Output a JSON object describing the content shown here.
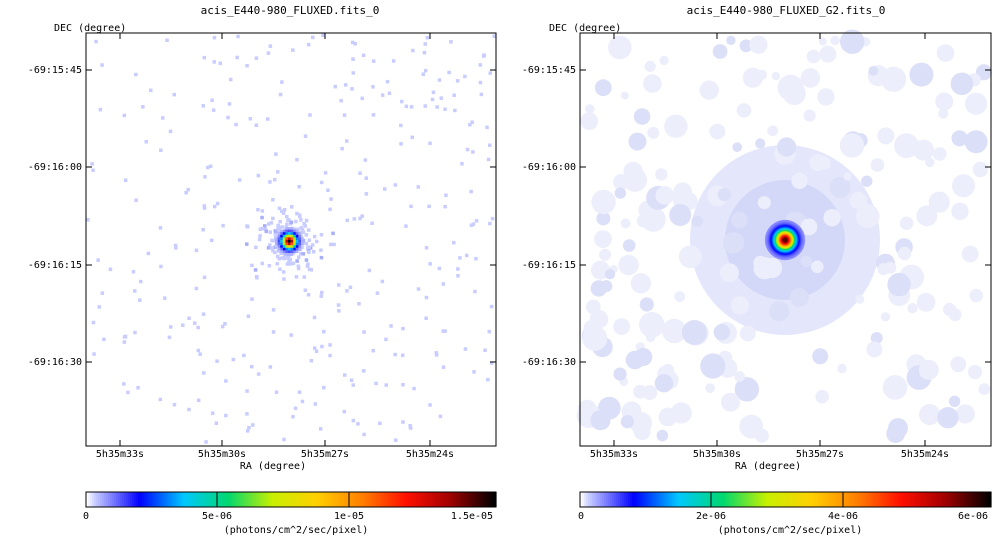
{
  "colors": {
    "colormap": [
      "#ffffff",
      "#c8ccff",
      "#0000ff",
      "#00c8ff",
      "#00d870",
      "#c8f000",
      "#ffd000",
      "#ff8000",
      "#ff1000",
      "#a00000",
      "#000000"
    ],
    "frame": "#000000",
    "background": "#ffffff"
  },
  "chart_data": [
    {
      "type": "heatmap",
      "title": "acis_E440-980_FLUXED.fits_0",
      "xlabel": "RA (degree)",
      "ylabel": "DEC (degree)",
      "x_ticks": [
        "5h35m33s",
        "5h35m30s",
        "5h35m27s",
        "5h35m24s"
      ],
      "y_ticks": [
        "-69:15:45",
        "-69:16:00",
        "-69:16:15",
        "-69:16:30"
      ],
      "source": {
        "ra": "5h35m28s",
        "dec": "-69:16:12",
        "peak": 1.5e-05
      },
      "style": "sparse",
      "colorbar": {
        "min": 0,
        "max": 1.5e-05,
        "tick_labels": [
          "0",
          "5e-06",
          "1e-05",
          "1.5e-05"
        ],
        "tick_values": [
          0,
          5e-06,
          1e-05,
          1.5e-05
        ],
        "label": "(photons/cm^2/sec/pixel)"
      }
    },
    {
      "type": "heatmap",
      "title": "acis_E440-980_FLUXED_G2.fits_0",
      "xlabel": "RA (degree)",
      "ylabel": "DEC (degree)",
      "x_ticks": [
        "5h35m33s",
        "5h35m30s",
        "5h35m27s",
        "5h35m24s"
      ],
      "y_ticks": [
        "-69:15:45",
        "-69:16:00",
        "-69:16:15",
        "-69:16:30"
      ],
      "source": {
        "ra": "5h35m28s",
        "dec": "-69:16:12",
        "peak": 6e-06
      },
      "style": "smoothed",
      "colorbar": {
        "min": 0,
        "max": 6e-06,
        "tick_labels": [
          "0",
          "2e-06",
          "4e-06",
          "6e-06"
        ],
        "tick_values": [
          0,
          2e-06,
          4e-06,
          6e-06
        ],
        "label": "(photons/cm^2/sec/pixel)"
      }
    }
  ]
}
